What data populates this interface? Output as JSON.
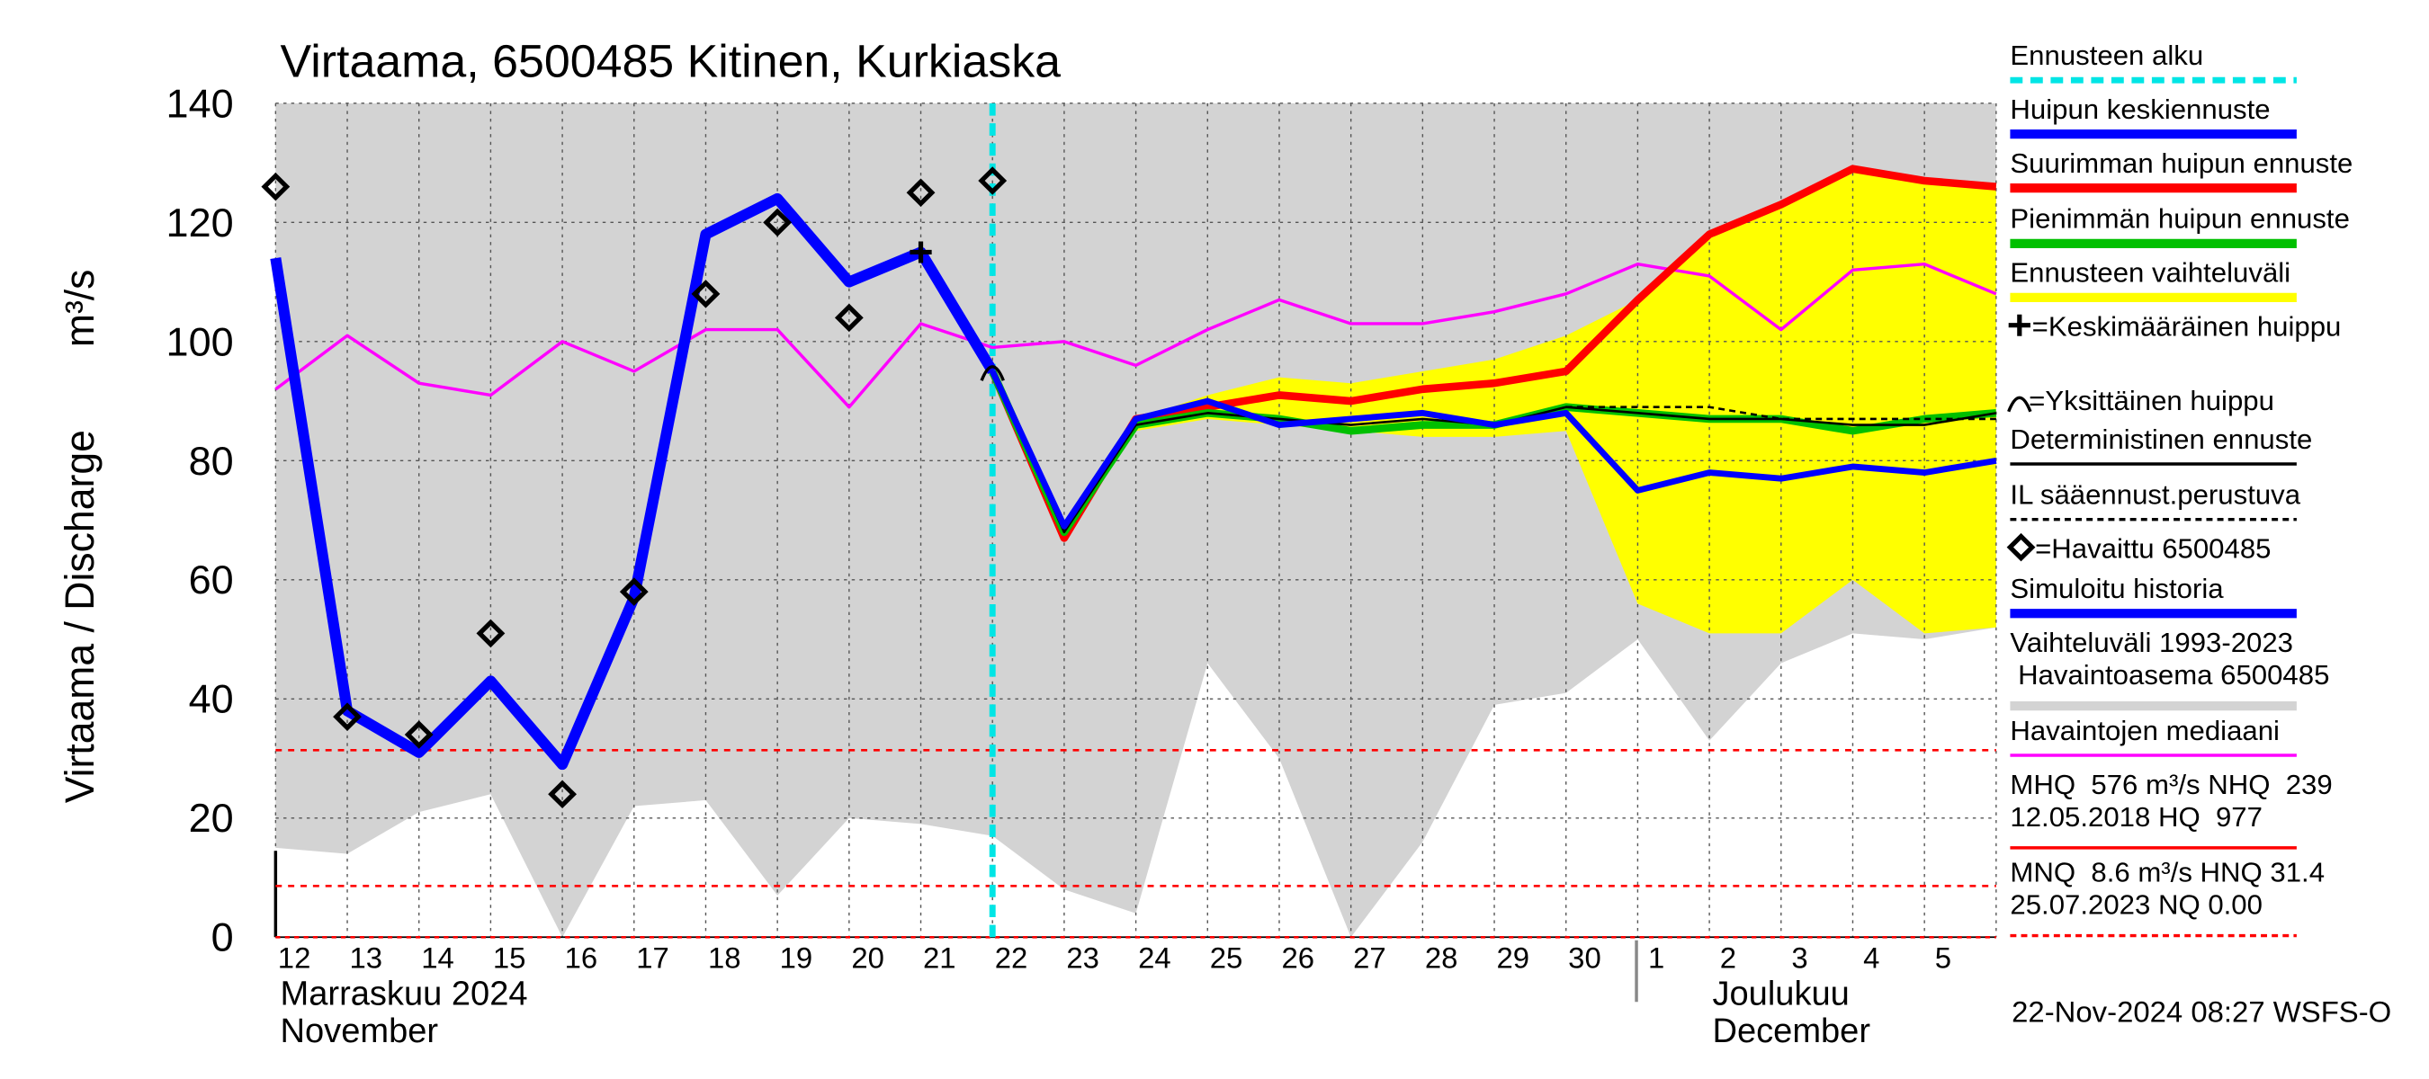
{
  "chart_data": {
    "type": "line",
    "title": "Virtaama, 6500485 Kitinen, Kurkiaska",
    "y_label": "Virtaama / Discharge",
    "y_unit": "m³/s",
    "categories": [
      "12",
      "13",
      "14",
      "15",
      "16",
      "17",
      "18",
      "19",
      "20",
      "21",
      "22",
      "23",
      "24",
      "25",
      "26",
      "27",
      "28",
      "29",
      "30",
      "1",
      "2",
      "3",
      "4",
      "5",
      null
    ],
    "month_labels": [
      {
        "index": 0,
        "line1": "Marraskuu 2024",
        "line2": "November"
      },
      {
        "index": 19,
        "line1": "Joulukuu",
        "line2": "December"
      }
    ],
    "ylim": [
      0,
      140
    ],
    "yticks": [
      0,
      20,
      40,
      60,
      80,
      100,
      120,
      140
    ],
    "grid": true,
    "forecast_start": 10,
    "forecast_color": "#00e5e5",
    "bands": [
      {
        "color": "#d3d3d3",
        "high": [
          140,
          140,
          140,
          140,
          140,
          140,
          140,
          140,
          140,
          140,
          140,
          140,
          140,
          140,
          140,
          140,
          140,
          140,
          140,
          140,
          140,
          140,
          140,
          140,
          140
        ],
        "low": [
          15,
          14,
          21,
          24,
          0,
          22,
          23,
          7,
          20,
          19,
          17,
          8,
          4,
          46,
          30,
          0,
          16,
          39,
          41,
          50,
          33,
          46,
          51,
          50,
          52
        ]
      },
      {
        "color": "#ffff00",
        "high": [
          null,
          null,
          null,
          null,
          null,
          null,
          null,
          null,
          null,
          null,
          null,
          null,
          87,
          91,
          94,
          93,
          95,
          97,
          101,
          107,
          118,
          123,
          129,
          127,
          126
        ],
        "low": [
          null,
          null,
          null,
          null,
          null,
          null,
          null,
          null,
          null,
          null,
          null,
          null,
          85,
          87,
          86,
          85,
          84,
          84,
          85,
          56,
          51,
          51,
          60,
          51,
          52
        ]
      }
    ],
    "reference_lines": [
      {
        "value": 31.4,
        "color": "#ff0000",
        "dash": "4 4"
      },
      {
        "value": 8.6,
        "color": "#ff0000",
        "dash": "4 4"
      },
      {
        "value": 0,
        "color": "#ff0000",
        "dash": "3 3"
      }
    ],
    "series": [
      {
        "kind": "line",
        "color": "#ff00ff",
        "width": 2,
        "values": [
          92,
          101,
          93,
          91,
          100,
          95,
          102,
          102,
          89,
          103,
          99,
          100,
          96,
          102,
          107,
          103,
          103,
          105,
          108,
          113,
          111,
          102,
          112,
          113,
          108
        ]
      },
      {
        "kind": "line",
        "color": "#ff0000",
        "width": 5,
        "values": [
          null,
          null,
          null,
          null,
          null,
          null,
          null,
          null,
          null,
          null,
          95,
          67,
          87,
          89,
          91,
          90,
          92,
          93,
          95,
          107,
          118,
          123,
          129,
          127,
          126
        ]
      },
      {
        "kind": "line",
        "color": "#00c000",
        "width": 5,
        "values": [
          null,
          null,
          null,
          null,
          null,
          null,
          null,
          null,
          null,
          null,
          95,
          68,
          86,
          88,
          87,
          85,
          86,
          86,
          89,
          88,
          87,
          87,
          85,
          87,
          88
        ]
      },
      {
        "kind": "line",
        "color": "#000000",
        "width": 1.5,
        "values": [
          null,
          null,
          null,
          null,
          null,
          null,
          null,
          null,
          null,
          null,
          95,
          68,
          86,
          88,
          87,
          86,
          87,
          86,
          89,
          88,
          87,
          87,
          86,
          86,
          88
        ]
      },
      {
        "kind": "line",
        "color": "#000000",
        "width": 1.5,
        "dash": "4 3",
        "values": [
          null,
          null,
          null,
          null,
          null,
          null,
          null,
          null,
          null,
          null,
          null,
          null,
          null,
          null,
          null,
          null,
          null,
          null,
          89,
          89,
          89,
          87,
          87,
          87,
          87
        ]
      },
      {
        "kind": "line",
        "color": "#0000ff",
        "width": 4,
        "values": [
          null,
          null,
          null,
          null,
          null,
          null,
          null,
          null,
          null,
          null,
          95,
          69,
          87,
          90,
          86,
          87,
          88,
          86,
          88,
          75,
          78,
          77,
          79,
          78,
          80
        ]
      },
      {
        "kind": "line",
        "color": "#0000ff",
        "width": 7,
        "values": [
          114,
          38,
          31,
          43,
          29,
          57,
          118,
          124,
          110,
          115,
          95,
          null,
          null,
          null,
          null,
          null,
          null,
          null,
          null,
          null,
          null,
          null,
          null,
          null,
          null
        ]
      },
      {
        "kind": "diamond",
        "color": "#000000",
        "values": [
          126,
          37,
          34,
          51,
          24,
          58,
          108,
          120,
          104,
          125,
          127,
          null,
          null,
          null,
          null,
          null,
          null,
          null,
          null,
          null,
          null,
          null,
          null,
          null,
          null
        ]
      },
      {
        "kind": "plus",
        "color": "#000000",
        "values": [
          null,
          null,
          null,
          null,
          null,
          null,
          null,
          null,
          null,
          115,
          null,
          null,
          null,
          null,
          null,
          null,
          null,
          null,
          null,
          null,
          null,
          null,
          null,
          null,
          null
        ]
      },
      {
        "kind": "arc",
        "color": "#000000",
        "values": [
          null,
          null,
          null,
          null,
          null,
          null,
          null,
          null,
          null,
          null,
          95,
          null,
          null,
          null,
          null,
          null,
          null,
          null,
          null,
          null,
          null,
          null,
          null,
          null,
          null
        ]
      }
    ],
    "legend": [
      {
        "label": "Ennusteen alku",
        "style": "dash",
        "color": "#00e5e5"
      },
      {
        "label": "Huipun keskiennuste",
        "style": "line",
        "color": "#0000ff"
      },
      {
        "label": "Suurimman huipun ennuste",
        "style": "line",
        "color": "#ff0000"
      },
      {
        "label": "Pienimmän huipun ennuste",
        "style": "line",
        "color": "#00c000"
      },
      {
        "label": "Ennusteen vaihteluväli",
        "style": "line",
        "color": "#ffff00"
      },
      {
        "label": "=Keskimääräinen huippu",
        "style": "plus",
        "color": "#000000"
      },
      {
        "label": "=Yksittäinen huippu",
        "style": "arc",
        "color": "#000000"
      },
      {
        "label": "Deterministinen ennuste",
        "style": "thin",
        "color": "#000000"
      },
      {
        "label": "IL sääennust.perustuva",
        "style": "dotted",
        "color": "#000000"
      },
      {
        "label": "=Havaittu 6500485",
        "style": "diamond",
        "color": "#000000"
      },
      {
        "label": "Simuloitu historia",
        "style": "line",
        "color": "#0000ff"
      },
      {
        "label": "Vaihteluväli 1993-2023",
        "label2": " Havaintoasema 6500485",
        "style": "line",
        "color": "#d3d3d3"
      },
      {
        "label": "Havaintojen mediaani",
        "style": "thin",
        "color": "#ff00ff"
      },
      {
        "label": "MHQ  576 m³/s NHQ  239",
        "label2": "12.05.2018 HQ  977",
        "style": "thin",
        "color": "#ff0000"
      },
      {
        "label": "MNQ  8.6 m³/s HNQ 31.4",
        "label2": "25.07.2023 NQ 0.00",
        "style": "dotted",
        "color": "#ff0000"
      }
    ],
    "footer": "22-Nov-2024 08:27 WSFS-O"
  }
}
